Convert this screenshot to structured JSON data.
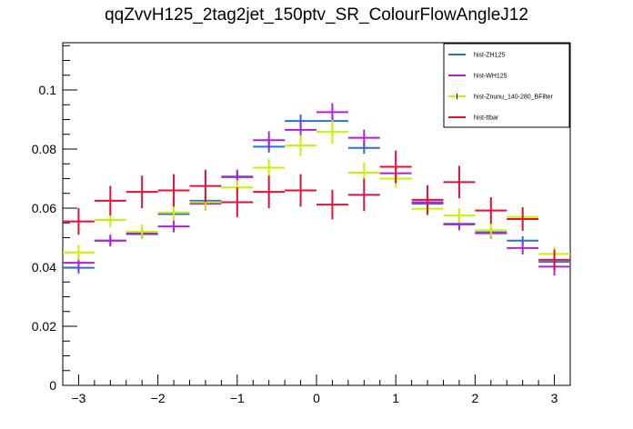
{
  "chart_data": {
    "type": "scatter",
    "title": "qqZvvH125_2tag2jet_150ptv_SR_ColourFlowAngleJ12",
    "xlabel": "",
    "ylabel": "",
    "xlim": [
      -3.2,
      3.2
    ],
    "ylim": [
      0,
      0.116
    ],
    "xticks": [
      -3,
      -2,
      -1,
      0,
      1,
      2,
      3
    ],
    "xtick_labels": [
      "−3",
      "−2",
      "−1",
      "0",
      "1",
      "2",
      "3"
    ],
    "yticks": [
      0,
      0.02,
      0.04,
      0.06,
      0.08,
      0.1
    ],
    "ytick_labels": [
      "0",
      "0.02",
      "0.04",
      "0.06",
      "0.08",
      "0.1"
    ],
    "grid": false,
    "legend_position": "top-right",
    "x": [
      -3.0,
      -2.6,
      -2.2,
      -1.8,
      -1.4,
      -1.0,
      -0.6,
      -0.2,
      0.2,
      0.6,
      1.0,
      1.4,
      1.8,
      2.2,
      2.6,
      3.0
    ],
    "bin_half_width": 0.2,
    "series": [
      {
        "name": "hist-ZH125",
        "color": "#2a6fdb",
        "values": [
          0.0398,
          0.049,
          0.0512,
          0.058,
          0.0625,
          0.0707,
          0.0808,
          0.0895,
          0.0895,
          0.0804,
          0.07,
          0.0615,
          0.0547,
          0.0518,
          0.049,
          0.0418
        ],
        "errors": [
          0.002,
          0.0015,
          0.0015,
          0.0015,
          0.0016,
          0.0018,
          0.002,
          0.0022,
          0.0022,
          0.002,
          0.0018,
          0.0016,
          0.0015,
          0.0015,
          0.0015,
          0.002
        ]
      },
      {
        "name": "hist-WH125",
        "color": "#b31fd6",
        "values": [
          0.0415,
          0.049,
          0.0515,
          0.0538,
          0.0615,
          0.0705,
          0.083,
          0.0865,
          0.0925,
          0.0838,
          0.0718,
          0.062,
          0.0545,
          0.0515,
          0.0465,
          0.0402
        ],
        "errors": [
          0.003,
          0.002,
          0.0018,
          0.002,
          0.0022,
          0.0025,
          0.003,
          0.003,
          0.003,
          0.0028,
          0.0025,
          0.0022,
          0.002,
          0.0018,
          0.0022,
          0.003
        ]
      },
      {
        "name": "hist-Znunu_140-280_BFilter",
        "color": "#c8f000",
        "values": [
          0.045,
          0.056,
          0.052,
          0.0585,
          0.062,
          0.067,
          0.0737,
          0.0812,
          0.0858,
          0.072,
          0.07,
          0.0598,
          0.0575,
          0.0525,
          0.057,
          0.0445
        ],
        "errors": [
          0.0025,
          0.0025,
          0.0025,
          0.0025,
          0.0025,
          0.0025,
          0.003,
          0.0035,
          0.004,
          0.0035,
          0.003,
          0.0025,
          0.0025,
          0.0025,
          0.003,
          0.0025
        ]
      },
      {
        "name": "hist-ttbar",
        "color": "#e0103a",
        "values": [
          0.0555,
          0.0625,
          0.0655,
          0.066,
          0.0675,
          0.062,
          0.0655,
          0.066,
          0.0612,
          0.0645,
          0.074,
          0.0628,
          0.0688,
          0.0592,
          0.0563,
          0.0425
        ],
        "errors": [
          0.0045,
          0.005,
          0.0055,
          0.0055,
          0.0055,
          0.005,
          0.0055,
          0.0055,
          0.005,
          0.0055,
          0.0055,
          0.005,
          0.0055,
          0.0045,
          0.004,
          0.0035
        ]
      }
    ]
  }
}
